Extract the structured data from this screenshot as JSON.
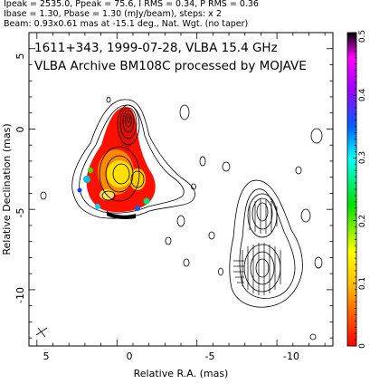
{
  "header": {
    "line1": "Ipeak = 2535.0, Ppeak = 75.6, I RMS = 0.34, P RMS = 0.36",
    "line2": "Ibase = 1.30, Pbase = 1.30 (mJy/beam), steps: x 2",
    "line3": "Beam: 0.93x0.61 mas at -15.1 deg., Nat. Wgt. (no taper)"
  },
  "chart_data": {
    "type": "contour",
    "title_line1": "1611+343, 1999-07-28, VLBA 15.4 GHz",
    "title_line2": "VLBA Archive BM108C processed by MOJAVE",
    "xlabel": "Relative R.A. (mas)",
    "ylabel": "Relative Declination (mas)",
    "xlim": [
      5.5,
      -13.5
    ],
    "ylim": [
      -13.5,
      6.0
    ],
    "xticks": [
      5,
      0,
      -5,
      -10
    ],
    "yticks": [
      5,
      0,
      -5,
      -10
    ],
    "tick_labels_x": [
      "5",
      "0",
      "-5",
      "-10"
    ],
    "tick_labels_y": [
      "5",
      "0",
      "-5",
      "-10"
    ],
    "colorbar": {
      "range": [
        0,
        0.5
      ],
      "ticks": [
        0,
        0.1,
        0.2,
        0.3,
        0.4,
        0.5
      ],
      "tick_labels": [
        "0",
        "0.1",
        "0.2",
        "0.3",
        "0.4",
        "0.5"
      ],
      "colors": [
        "#ff0000",
        "#ffa000",
        "#ffff00",
        "#00e000",
        "#00ffff",
        "#0060ff",
        "#a000ff",
        "#ff00ff",
        "#000000"
      ]
    },
    "beam": {
      "major_mas": 0.93,
      "minor_mas": 0.61,
      "pa_deg": -15.1
    },
    "core_ra_dec": [
      0,
      0
    ],
    "left_panel": "total intensity contours with fractional polarization color map",
    "right_panel": "linear polarization contours with EVPA ticks"
  }
}
